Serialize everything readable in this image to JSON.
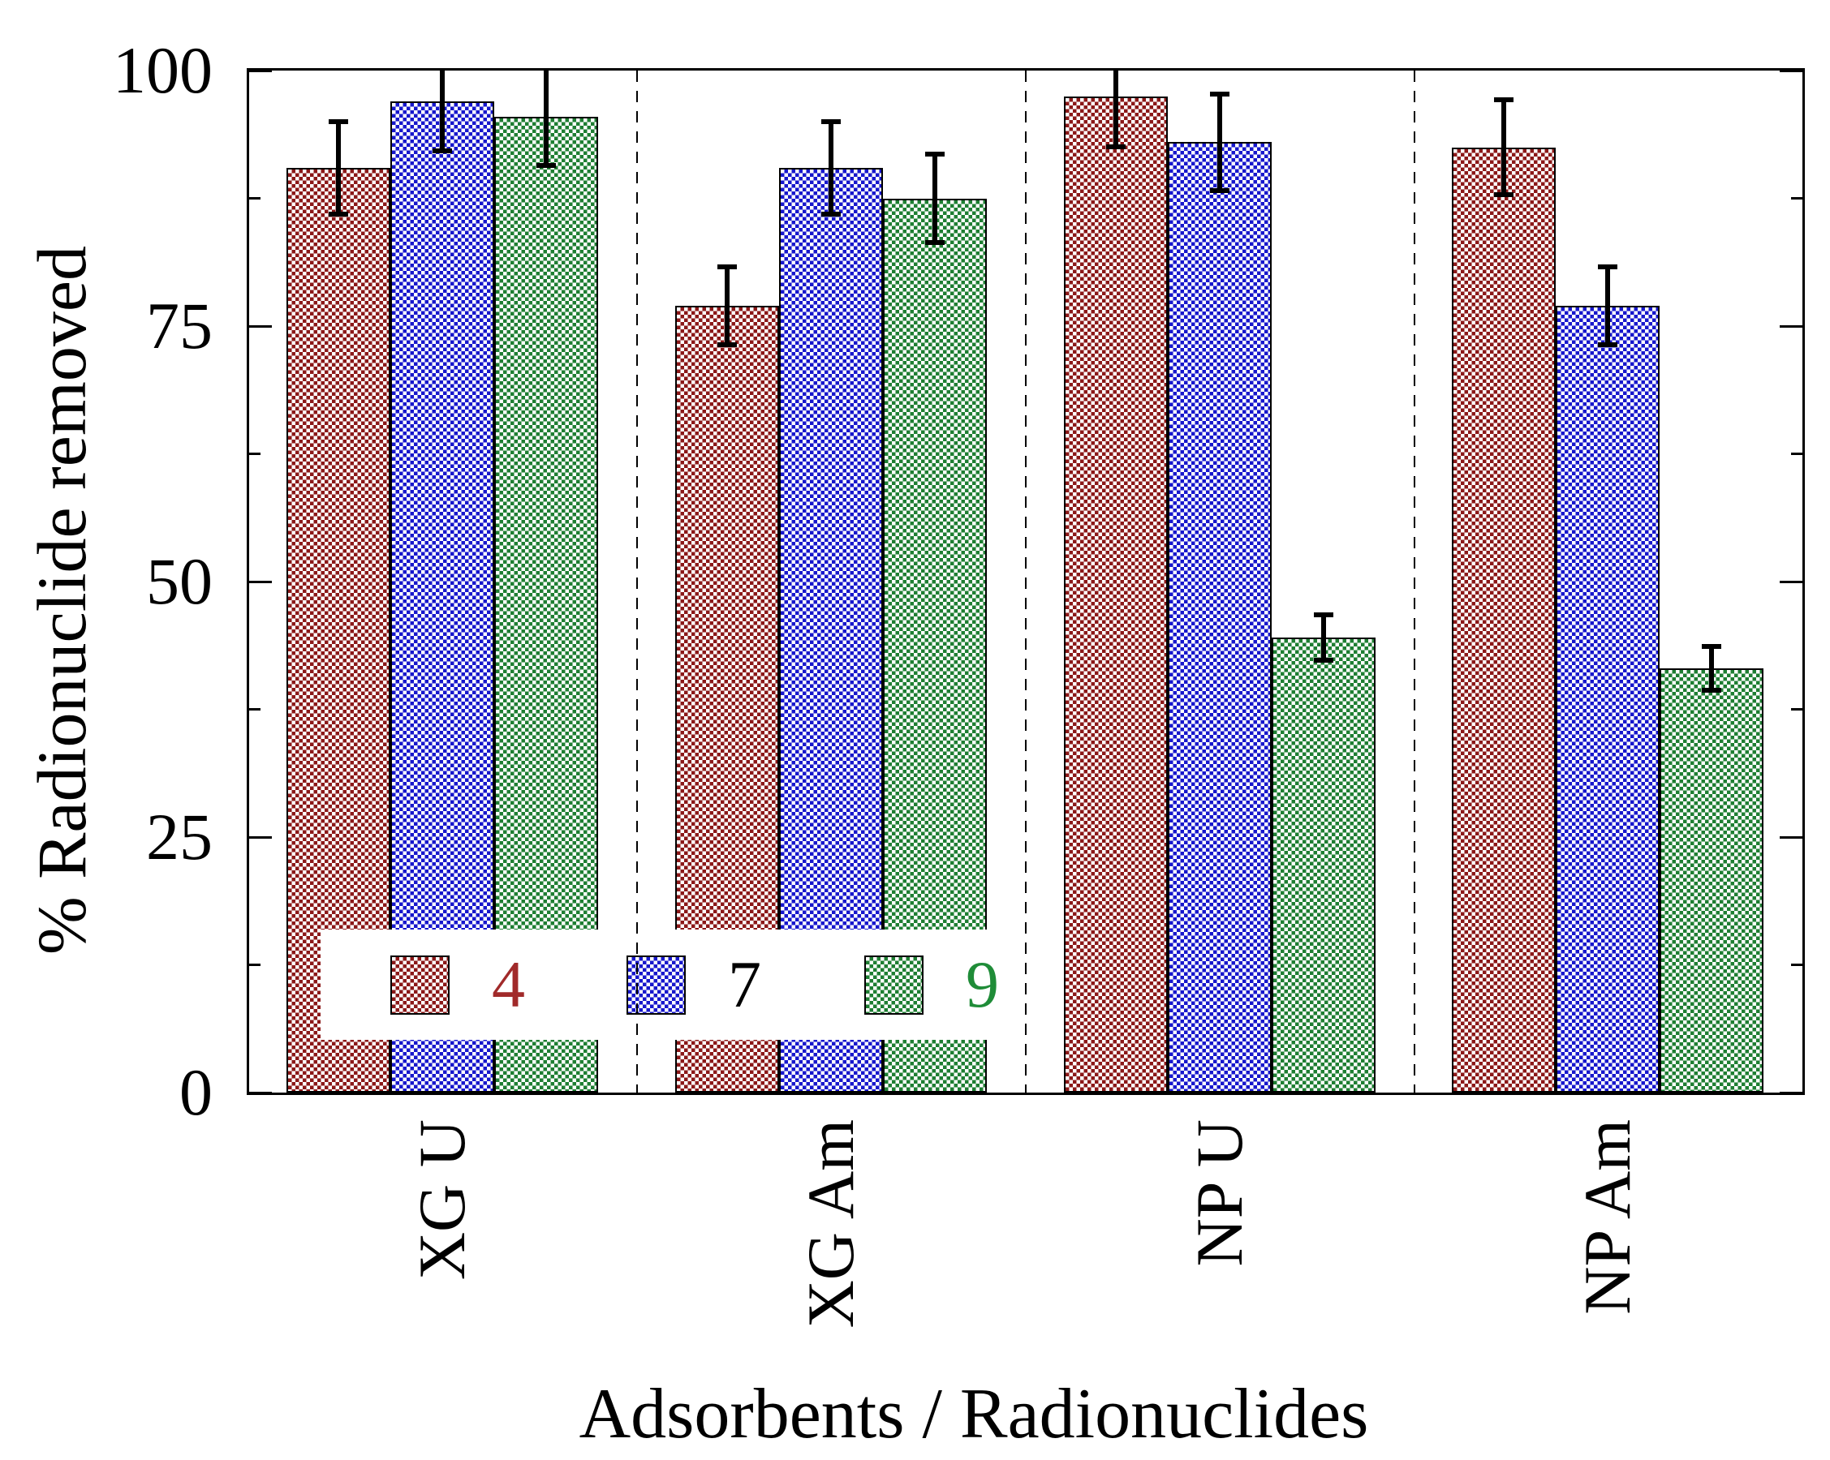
{
  "figure": {
    "y_axis": {
      "title": "% Radionuclide removed",
      "major_ticks": [
        0,
        25,
        50,
        75,
        100
      ],
      "minor_ticks": [
        12.5,
        37.5,
        62.5,
        87.5
      ],
      "range": [
        0,
        100
      ]
    },
    "x_axis": {
      "title": "Adsorbents / Radionuclides",
      "categories": [
        "XG U",
        "XG Am",
        "NP U",
        "NP Am"
      ]
    },
    "legend": {
      "items": [
        {
          "label": "4",
          "swatch_color": "#8b1818",
          "text_color": "#a12a2a"
        },
        {
          "label": "7",
          "swatch_color": "#1717cc",
          "text_color": "#000000"
        },
        {
          "label": "9",
          "swatch_color": "#1e7e32",
          "text_color": "#1f8c38"
        }
      ]
    }
  },
  "chart_data": {
    "type": "bar",
    "title": "",
    "xlabel": "Adsorbents / Radionuclides",
    "ylabel": "% Radionuclide removed",
    "ylim": [
      0,
      100
    ],
    "grid": false,
    "legend_position": "inside-bottom-left",
    "group_dividers": "dashed vertical lines between category groups",
    "bar_fill_style": "checkerboard pattern with white",
    "categories": [
      "XG U",
      "XG Am",
      "NP U",
      "NP Am"
    ],
    "series": [
      {
        "name": "4",
        "color": "#8b1818",
        "values": [
          90.5,
          77.0,
          97.5,
          92.5
        ],
        "errors": [
          4.6,
          3.9,
          5.0,
          4.7
        ]
      },
      {
        "name": "7",
        "color": "#1717cc",
        "values": [
          97.0,
          90.5,
          93.0,
          77.0
        ],
        "errors": [
          4.9,
          4.6,
          4.8,
          3.9
        ]
      },
      {
        "name": "9",
        "color": "#1e7e32",
        "values": [
          95.5,
          87.5,
          44.5,
          41.5
        ],
        "errors": [
          4.9,
          4.4,
          2.3,
          2.2
        ]
      }
    ],
    "note": "error whiskers exceeding 100 are clipped at the plot top"
  }
}
